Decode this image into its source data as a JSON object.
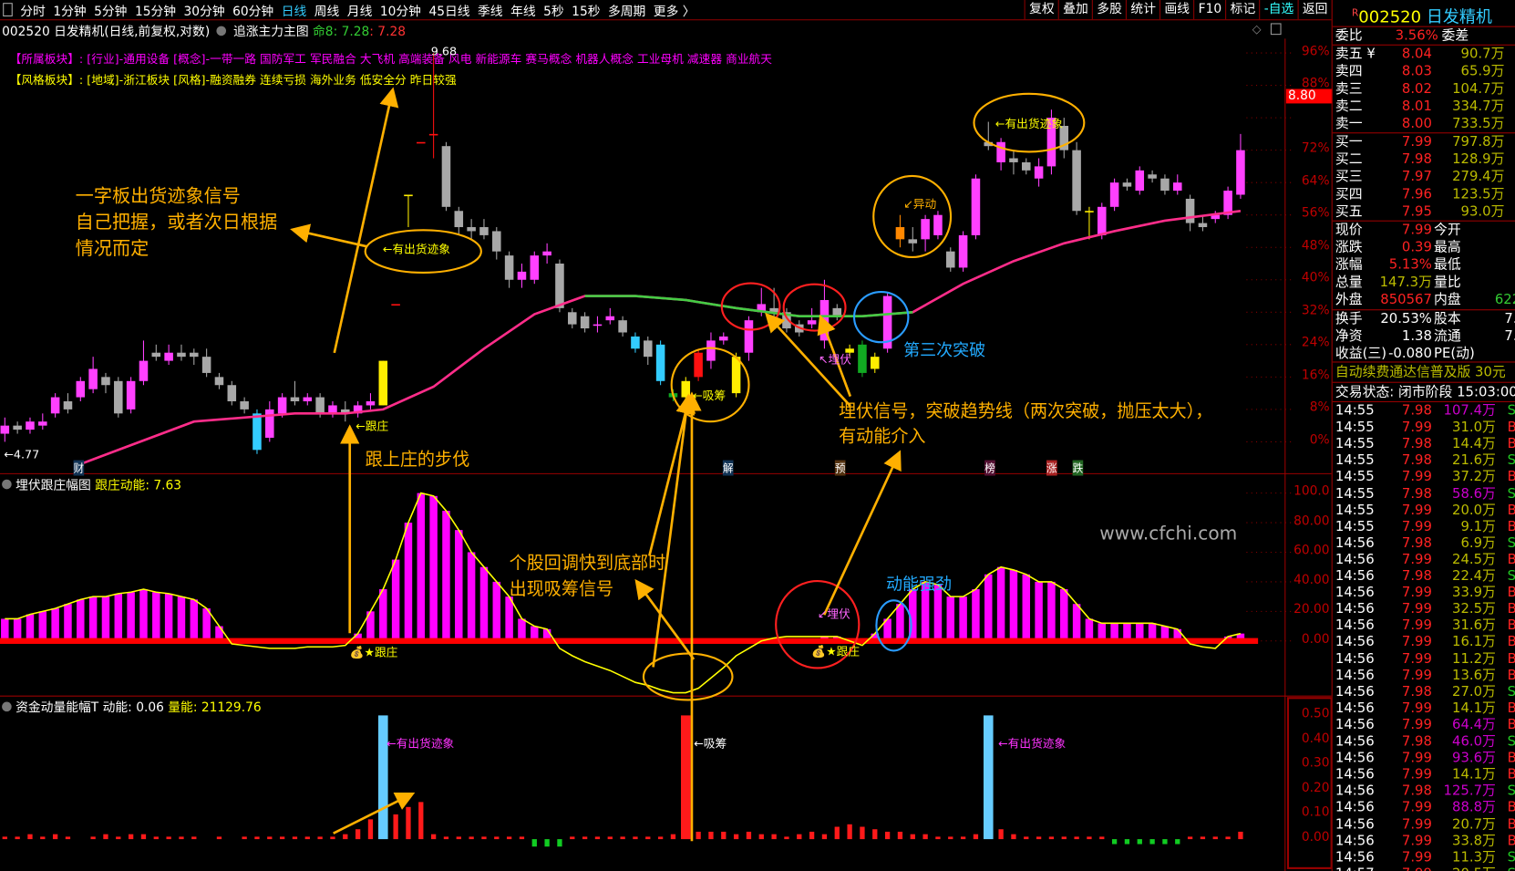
{
  "toolbar": {
    "tabs": [
      "分时",
      "1分钟",
      "5分钟",
      "15分钟",
      "30分钟",
      "60分钟",
      "日线",
      "周线",
      "月线",
      "10分钟",
      "45日线",
      "季线",
      "年线",
      "5秒",
      "15秒",
      "多周期",
      "更多 〉"
    ],
    "active": "日线",
    "tools": [
      "复权",
      "叠加",
      "多股",
      "统计",
      "画线",
      "F10",
      "标记",
      "-自选",
      "返回"
    ]
  },
  "info": {
    "title": "002520 日发精机(日线,前复权,对数)",
    "indicator": "追涨主力主图",
    "ming_label": "命8: 7.28",
    "ming_value": ": 7.28"
  },
  "sectors": {
    "belong_label": "【所属板块】:",
    "belong": "[行业]-通用设备 [概念]-一带一路 国防军工 军民融合 大飞机 高端装备 风电 新能源车 赛马概念 机器人概念 工业母机 减速器 商业航天",
    "style_label": "【风格板块】:",
    "style": "[地域]-浙江板块 [风格]-融资融券 连续亏损 海外业务 低安全分 昨日较强"
  },
  "price_axis": [
    "96%",
    "88%",
    "72%",
    "64%",
    "56%",
    "48%",
    "40%",
    "32%",
    "24%",
    "16%",
    "8%",
    "0%"
  ],
  "price_tag": "8.80",
  "ind1": {
    "name": "埋伏跟庄幅图",
    "value": "跟庄动能: 7.63",
    "axis": [
      "100.0",
      "80.00",
      "60.00",
      "40.00",
      "20.00",
      "0.00"
    ]
  },
  "ind2": {
    "name": "资金动量能幅T",
    "dn": "动能: 0.06",
    "ln": "量能: 21129.76",
    "axis": [
      "0.50",
      "0.40",
      "0.30",
      "0.20",
      "0.10",
      "0.00"
    ]
  },
  "annotations": {
    "a1": "一字板出货迹象信号",
    "a2": "自己把握，或者次日根据",
    "a3": "情况而定",
    "ship1": "←有出货迹象",
    "ship2": "←有出货迹象",
    "follow_step": "跟上庄的步伐",
    "follow": "←跟庄",
    "absorb": "←吸筹",
    "move": "↙异动",
    "ambush": "↖埋伏",
    "third": "第三次突破",
    "sig1": "埋伏信号，突破趋势线（两次突破，抛压太大），",
    "sig2": "有动能介入",
    "low": "←4.77",
    "high": "9.68",
    "cai": "财",
    "jie": "解",
    "yu": "预",
    "bang": "榜",
    "zhang": "涨",
    "die": "跌",
    "pull1": "个股回调快到底部时",
    "pull2": "出现吸筹信号",
    "strong": "动能强劲",
    "ambush2": "↙埋伏",
    "follow2": "跟庄",
    "follow3": "跟庄",
    "watermark": "www.cfchi.com",
    "ship3": "有出货迹象",
    "absorb2": "←吸筹",
    "ship4": "有出货迹象"
  },
  "quote": {
    "code": "002520",
    "name": "日发精机",
    "wb_label": "委比",
    "wb": "3.56%",
    "wc_label": "委差",
    "asks": [
      [
        "卖五 ¥",
        "8.04",
        "90.7万"
      ],
      [
        "卖四",
        "8.03",
        "65.9万"
      ],
      [
        "卖三",
        "8.02",
        "104.7万"
      ],
      [
        "卖二",
        "8.01",
        "334.7万"
      ],
      [
        "卖一",
        "8.00",
        "733.5万"
      ]
    ],
    "bids": [
      [
        "买一",
        "7.99",
        "797.8万"
      ],
      [
        "买二",
        "7.98",
        "128.9万"
      ],
      [
        "买三",
        "7.97",
        "279.4万"
      ],
      [
        "买四",
        "7.96",
        "123.5万"
      ],
      [
        "买五",
        "7.95",
        "93.0万"
      ]
    ],
    "stats": [
      [
        "现价",
        "7.99",
        "今开",
        ""
      ],
      [
        "涨跌",
        "0.39",
        "最高",
        ""
      ],
      [
        "涨幅",
        "5.13%",
        "最低",
        ""
      ],
      [
        "总量",
        "147.3万",
        "量比",
        ""
      ],
      [
        "外盘",
        "850567",
        "内盘",
        "622"
      ]
    ],
    "stats2": [
      [
        "换手",
        "20.53%",
        "股本",
        "7."
      ],
      [
        "净资",
        "1.38",
        "流通",
        "7."
      ],
      [
        "收益(三)",
        "-0.080",
        "PE(动)",
        ""
      ]
    ],
    "promo": "自动续费通达信普及版  30元",
    "status": "交易状态: 闭市阶段 15:03:00",
    "trades": [
      [
        "14:55",
        "7.98",
        "107.4万",
        "S"
      ],
      [
        "14:55",
        "7.99",
        "31.0万",
        "B"
      ],
      [
        "14:55",
        "7.98",
        "14.4万",
        "B"
      ],
      [
        "14:55",
        "7.98",
        "21.6万",
        "S"
      ],
      [
        "14:55",
        "7.99",
        "37.2万",
        "B"
      ],
      [
        "14:55",
        "7.98",
        "58.6万",
        "S"
      ],
      [
        "14:55",
        "7.99",
        "20.0万",
        "B"
      ],
      [
        "14:55",
        "7.99",
        "9.1万",
        "B"
      ],
      [
        "14:56",
        "7.98",
        "6.9万",
        "S"
      ],
      [
        "14:56",
        "7.99",
        "24.5万",
        "B"
      ],
      [
        "14:56",
        "7.98",
        "22.4万",
        "S"
      ],
      [
        "14:56",
        "7.99",
        "33.9万",
        "B"
      ],
      [
        "14:56",
        "7.99",
        "32.5万",
        "B"
      ],
      [
        "14:56",
        "7.99",
        "31.6万",
        "B"
      ],
      [
        "14:56",
        "7.99",
        "16.1万",
        "B"
      ],
      [
        "14:56",
        "7.99",
        "11.2万",
        "B"
      ],
      [
        "14:56",
        "7.99",
        "13.6万",
        "B"
      ],
      [
        "14:56",
        "7.98",
        "27.0万",
        "S"
      ],
      [
        "14:56",
        "7.99",
        "14.1万",
        "B"
      ],
      [
        "14:56",
        "7.99",
        "64.4万",
        "B"
      ],
      [
        "14:56",
        "7.98",
        "46.0万",
        "S"
      ],
      [
        "14:56",
        "7.99",
        "93.6万",
        "B"
      ],
      [
        "14:56",
        "7.99",
        "14.1万",
        "B"
      ],
      [
        "14:56",
        "7.98",
        "125.7万",
        "S"
      ],
      [
        "14:56",
        "7.99",
        "88.8万",
        "B"
      ],
      [
        "14:56",
        "7.99",
        "20.7万",
        "B"
      ],
      [
        "14:56",
        "7.99",
        "33.8万",
        "B"
      ],
      [
        "14:56",
        "7.99",
        "11.3万",
        "S"
      ],
      [
        "14:57",
        "7.99",
        "20.5万",
        "S"
      ]
    ],
    "big_trade_vols": [
      "107.4万",
      "58.6万",
      "64.4万",
      "46.0万",
      "93.6万",
      "125.7万",
      "88.8万"
    ]
  },
  "colors": {
    "up": "#ff40ff",
    "down": "#a8a8a8",
    "ma": "#ff2d8a",
    "ma_green": "#44cc44",
    "ann": "#ffb000",
    "bar1": "#ff00ff",
    "base": "#ff0000"
  },
  "chart_data": {
    "type": "candlestick",
    "unit": "percent",
    "candles": [
      [
        2,
        4,
        6,
        0
      ],
      [
        4,
        3,
        5,
        2
      ],
      [
        3,
        5,
        6,
        2
      ],
      [
        4,
        5,
        7,
        3
      ],
      [
        7,
        11,
        12,
        6
      ],
      [
        10,
        8,
        12,
        7
      ],
      [
        11,
        15,
        16,
        10
      ],
      [
        13,
        18,
        21,
        12
      ],
      [
        16,
        14,
        17,
        12
      ],
      [
        15,
        7,
        16,
        6
      ],
      [
        8,
        15,
        16,
        7
      ],
      [
        15,
        20,
        25,
        14
      ],
      [
        22,
        21,
        24,
        20
      ],
      [
        20,
        22,
        24,
        19
      ],
      [
        22,
        21,
        24,
        20
      ],
      [
        22,
        21,
        23,
        19
      ],
      [
        21,
        17,
        23,
        16
      ],
      [
        16,
        14,
        17,
        13
      ],
      [
        14,
        10,
        15,
        9
      ],
      [
        10,
        8,
        11,
        7
      ],
      [
        7,
        -2,
        8,
        -3,
        "cyan"
      ],
      [
        1,
        8,
        10,
        0
      ],
      [
        7,
        11,
        12,
        6
      ],
      [
        11,
        10,
        15,
        9
      ],
      [
        10,
        11,
        12,
        9
      ],
      [
        11,
        7,
        12,
        6
      ],
      [
        7,
        9,
        10,
        6
      ],
      [
        8,
        7,
        10,
        5
      ],
      [
        7,
        9,
        10,
        6
      ],
      [
        9,
        10,
        12,
        8
      ],
      [
        9,
        20,
        20,
        9,
        "yellow"
      ],
      [
        34,
        34,
        34,
        34,
        "red"
      ],
      [
        61,
        61,
        61,
        53,
        "yellow"
      ],
      [
        74,
        74,
        74,
        74,
        "red"
      ],
      [
        76,
        76,
        96,
        70,
        "red"
      ],
      [
        73,
        58,
        74,
        57
      ],
      [
        57,
        53,
        58,
        51
      ],
      [
        53,
        52,
        55,
        50
      ],
      [
        53,
        51,
        55,
        50
      ],
      [
        52,
        47,
        53,
        45
      ],
      [
        46,
        40,
        47,
        38
      ],
      [
        40,
        42,
        44,
        38
      ],
      [
        40,
        46,
        47,
        39
      ],
      [
        46,
        47,
        49,
        44
      ],
      [
        44,
        33,
        45,
        32
      ],
      [
        32,
        29,
        33,
        28
      ],
      [
        31,
        28,
        32,
        27
      ],
      [
        29,
        29,
        31,
        27
      ],
      [
        30,
        31,
        33,
        29
      ],
      [
        30,
        27,
        31,
        26
      ],
      [
        26,
        23,
        27,
        22,
        "cyan"
      ],
      [
        25,
        21,
        26,
        19
      ],
      [
        24,
        15,
        25,
        14,
        "cyan"
      ],
      [
        12,
        11,
        13,
        10,
        "green"
      ],
      [
        11,
        15,
        16,
        10,
        "yellow"
      ],
      [
        16,
        22,
        23,
        15,
        "red"
      ],
      [
        20,
        25,
        27,
        18
      ],
      [
        25,
        26,
        27,
        24
      ],
      [
        21,
        12,
        22,
        11,
        "yellow"
      ],
      [
        22,
        30,
        31,
        20
      ],
      [
        32,
        34,
        38,
        31
      ],
      [
        33,
        32,
        38,
        30
      ],
      [
        32,
        28,
        33,
        27
      ],
      [
        29,
        27,
        30,
        26
      ],
      [
        29,
        30,
        33,
        28
      ],
      [
        25,
        35,
        40,
        23
      ],
      [
        33,
        31,
        34,
        30
      ],
      [
        23,
        22,
        24,
        21,
        "yellow"
      ],
      [
        24,
        17,
        25,
        16,
        "green"
      ],
      [
        21,
        18,
        22,
        17,
        "yellow"
      ],
      [
        23,
        36,
        37,
        22
      ],
      [
        50,
        53,
        56,
        48,
        "orange"
      ],
      [
        50,
        49,
        53,
        47
      ],
      [
        50,
        55,
        56,
        47
      ],
      [
        51,
        56,
        57,
        50
      ],
      [
        47,
        43,
        48,
        42
      ],
      [
        43,
        51,
        52,
        42
      ],
      [
        51,
        65,
        66,
        50
      ],
      [
        74,
        73,
        79,
        72
      ],
      [
        69,
        74,
        75,
        67
      ],
      [
        70,
        69,
        72,
        66
      ],
      [
        69,
        67,
        70,
        66
      ],
      [
        65,
        68,
        70,
        63
      ],
      [
        68,
        80,
        82,
        66
      ],
      [
        78,
        72,
        80,
        70
      ],
      [
        72,
        57,
        74,
        56
      ],
      [
        57,
        57,
        58,
        50,
        "yellow"
      ],
      [
        51,
        58,
        59,
        50
      ],
      [
        58,
        64,
        65,
        57
      ],
      [
        64,
        63,
        65,
        62
      ],
      [
        62,
        67,
        68,
        61
      ],
      [
        66,
        65,
        67,
        64
      ],
      [
        65,
        62,
        66,
        61
      ],
      [
        62,
        64,
        66,
        61
      ],
      [
        60,
        54,
        61,
        52
      ],
      [
        54,
        53,
        56,
        52
      ],
      [
        55,
        56,
        57,
        54
      ],
      [
        56,
        62,
        63,
        55
      ],
      [
        61,
        72,
        76,
        60
      ]
    ],
    "ma": [
      [
        6,
        -5.5
      ],
      [
        15,
        5
      ],
      [
        23,
        7
      ],
      [
        27,
        7
      ],
      [
        30,
        8
      ],
      [
        34,
        13.6
      ],
      [
        38,
        23
      ],
      [
        42,
        31.5
      ],
      [
        46,
        36
      ],
      [
        50,
        36
      ],
      [
        54,
        35
      ],
      [
        58,
        33
      ],
      [
        63,
        31
      ],
      [
        68,
        31
      ],
      [
        72,
        32
      ],
      [
        76,
        39
      ],
      [
        80,
        44.6
      ],
      [
        84,
        49
      ],
      [
        88,
        52
      ],
      [
        92,
        54.6
      ],
      [
        98,
        57
      ]
    ],
    "ma_green_range": [
      46,
      72
    ],
    "ind1_bars": [
      15,
      15,
      18,
      20,
      22,
      25,
      28,
      30,
      30,
      32,
      33,
      35,
      33,
      32,
      30,
      28,
      22,
      10,
      0,
      0,
      0,
      0,
      0,
      0,
      0,
      0,
      0,
      0,
      5,
      20,
      35,
      55,
      80,
      100,
      98,
      88,
      75,
      60,
      50,
      40,
      30,
      15,
      10,
      8,
      0,
      0,
      0,
      0,
      0,
      0,
      0,
      0,
      0,
      0,
      0,
      0,
      0,
      0,
      0,
      0,
      0,
      0,
      0,
      0,
      0,
      3,
      3,
      0,
      0,
      5,
      15,
      25,
      35,
      40,
      38,
      30,
      30,
      35,
      45,
      50,
      48,
      45,
      40,
      40,
      35,
      25,
      15,
      12,
      12,
      12,
      12,
      12,
      10,
      8,
      0,
      0,
      0,
      3,
      5
    ],
    "ind1_line": [
      15,
      15,
      18,
      20,
      22,
      25,
      28,
      30,
      30,
      32,
      33,
      35,
      33,
      32,
      30,
      28,
      22,
      10,
      -2,
      -3,
      -4,
      -5,
      -5,
      -5,
      -4,
      -4,
      -4,
      -3,
      5,
      20,
      35,
      55,
      80,
      100,
      98,
      88,
      75,
      60,
      50,
      40,
      30,
      15,
      10,
      8,
      -5,
      -10,
      -14,
      -17,
      -20,
      -24,
      -28,
      -30,
      -33,
      -35,
      -35,
      -32,
      -25,
      -18,
      -10,
      -5,
      0,
      2,
      3,
      3,
      3,
      3,
      3,
      0,
      -3,
      5,
      15,
      25,
      35,
      40,
      38,
      30,
      30,
      35,
      45,
      50,
      48,
      45,
      40,
      40,
      35,
      25,
      15,
      12,
      12,
      12,
      12,
      12,
      10,
      8,
      -2,
      -4,
      -5,
      3,
      5
    ],
    "ind2": [
      [
        0.01,
        "r"
      ],
      [
        0.01,
        "r"
      ],
      [
        0.02,
        "r"
      ],
      [
        0.01,
        "r"
      ],
      [
        0.02,
        "r"
      ],
      [
        0.01,
        "r"
      ],
      [
        0,
        "r"
      ],
      [
        0.01,
        "r"
      ],
      [
        0.02,
        "r"
      ],
      [
        0.01,
        "r"
      ],
      [
        0.02,
        "r"
      ],
      [
        0.02,
        "r"
      ],
      [
        0.01,
        "r"
      ],
      [
        0.01,
        "r"
      ],
      [
        0.01,
        "r"
      ],
      [
        0.01,
        "r"
      ],
      [
        0,
        "r"
      ],
      [
        0.01,
        "r"
      ],
      [
        0,
        "r"
      ],
      [
        0.01,
        "r"
      ],
      [
        0.01,
        "r"
      ],
      [
        0.01,
        "r"
      ],
      [
        0.01,
        "r"
      ],
      [
        0.01,
        "r"
      ],
      [
        0.01,
        "r"
      ],
      [
        0.01,
        "r"
      ],
      [
        0.01,
        "r"
      ],
      [
        0.02,
        "r"
      ],
      [
        0.04,
        "r"
      ],
      [
        0.08,
        "r"
      ],
      [
        0.5,
        "c"
      ],
      [
        0.1,
        "r"
      ],
      [
        0.13,
        "r"
      ],
      [
        0.15,
        "r"
      ],
      [
        0.02,
        "r"
      ],
      [
        0.01,
        "r"
      ],
      [
        0.01,
        "r"
      ],
      [
        0.01,
        "r"
      ],
      [
        0.01,
        "r"
      ],
      [
        0.01,
        "r"
      ],
      [
        0.01,
        "r"
      ],
      [
        0.01,
        "r"
      ],
      [
        -0.03,
        "g"
      ],
      [
        -0.03,
        "g"
      ],
      [
        -0.03,
        "g"
      ],
      [
        0.01,
        "r"
      ],
      [
        0.01,
        "r"
      ],
      [
        0.01,
        "r"
      ],
      [
        0.01,
        "r"
      ],
      [
        0.01,
        "r"
      ],
      [
        0.01,
        "r"
      ],
      [
        0.01,
        "r"
      ],
      [
        0.01,
        "r"
      ],
      [
        0.02,
        "r"
      ],
      [
        0.5,
        "r"
      ],
      [
        0.03,
        "r"
      ],
      [
        0.03,
        "r"
      ],
      [
        0.03,
        "r"
      ],
      [
        0.02,
        "r"
      ],
      [
        0.03,
        "r"
      ],
      [
        0.02,
        "r"
      ],
      [
        0.02,
        "r"
      ],
      [
        0.01,
        "r"
      ],
      [
        0.02,
        "r"
      ],
      [
        0.03,
        "r"
      ],
      [
        0.02,
        "r"
      ],
      [
        0.05,
        "r"
      ],
      [
        0.06,
        "r"
      ],
      [
        0.05,
        "r"
      ],
      [
        0.04,
        "r"
      ],
      [
        0.03,
        "r"
      ],
      [
        0.03,
        "r"
      ],
      [
        0.02,
        "r"
      ],
      [
        0.02,
        "r"
      ],
      [
        0.01,
        "r"
      ],
      [
        0.01,
        "r"
      ],
      [
        0.01,
        "r"
      ],
      [
        0.02,
        "r"
      ],
      [
        0.5,
        "c"
      ],
      [
        0.04,
        "r"
      ],
      [
        0.02,
        "r"
      ],
      [
        0.01,
        "r"
      ],
      [
        0.01,
        "r"
      ],
      [
        0.01,
        "r"
      ],
      [
        0.01,
        "r"
      ],
      [
        0.01,
        "r"
      ],
      [
        0.01,
        "r"
      ],
      [
        0.01,
        "r"
      ],
      [
        -0.02,
        "g"
      ],
      [
        -0.02,
        "g"
      ],
      [
        -0.02,
        "g"
      ],
      [
        -0.02,
        "g"
      ],
      [
        -0.02,
        "g"
      ],
      [
        -0.02,
        "g"
      ],
      [
        0.01,
        "r"
      ],
      [
        0.01,
        "r"
      ],
      [
        0.01,
        "r"
      ],
      [
        0.01,
        "r"
      ],
      [
        0.03,
        "r"
      ]
    ]
  }
}
